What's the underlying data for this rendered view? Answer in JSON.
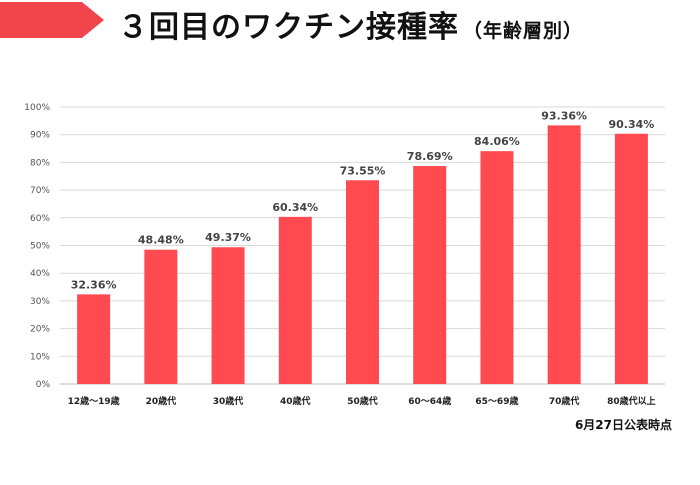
{
  "title": {
    "main": "３回目のワクチン接種率",
    "sub": "（年齢層別）"
  },
  "colors": {
    "accent": "#f0464b",
    "bar": "#ff4a4f",
    "grid": "#d9d9d9",
    "axis": "#bfbfbf"
  },
  "footnote": "6月27日公表時点",
  "chart_data": {
    "type": "bar",
    "title": "３回目のワクチン接種率（年齢層別）",
    "xlabel": "",
    "ylabel": "",
    "categories": [
      "12歳～19歳",
      "20歳代",
      "30歳代",
      "40歳代",
      "50歳代",
      "60～64歳",
      "65～69歳",
      "70歳代",
      "80歳代以上"
    ],
    "values": [
      32.36,
      48.48,
      49.37,
      60.34,
      73.55,
      78.69,
      84.06,
      93.36,
      90.34
    ],
    "value_labels": [
      "32.36%",
      "48.48%",
      "49.37%",
      "60.34%",
      "73.55%",
      "78.69%",
      "84.06%",
      "93.36%",
      "90.34%"
    ],
    "ylim": [
      0,
      100
    ],
    "yticks": [
      0,
      10,
      20,
      30,
      40,
      50,
      60,
      70,
      80,
      90,
      100
    ],
    "ytick_labels": [
      "0%",
      "10%",
      "20%",
      "30%",
      "40%",
      "50%",
      "60%",
      "70%",
      "80%",
      "90%",
      "100%"
    ],
    "grid": true
  }
}
